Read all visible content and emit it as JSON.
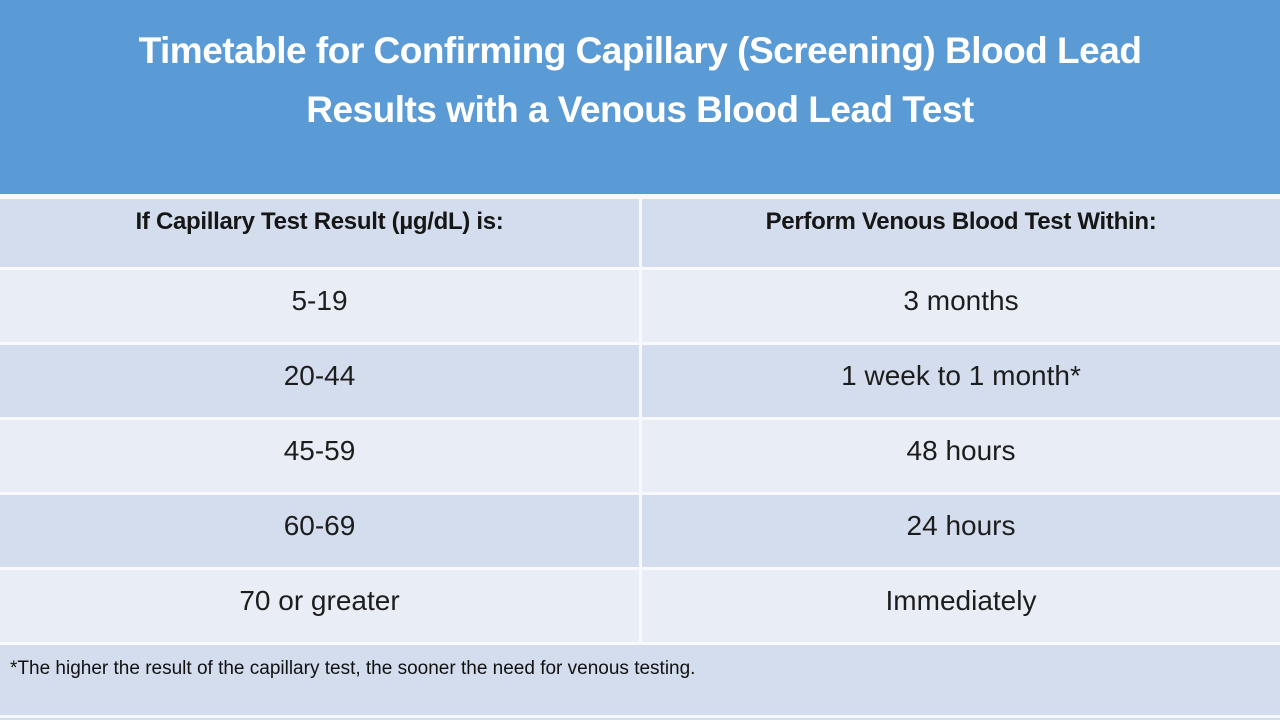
{
  "slide": {
    "title_lines": [
      "Timetable for Confirming Capillary (Screening) Blood Lead",
      "Results with a Venous Blood Lead Test"
    ],
    "colors": {
      "title_band_bg": "#5b9bd5",
      "title_text": "#ffffff",
      "band_dark": "#d3dded",
      "band_light": "#e9edf5",
      "body_text": "#1a1a1a"
    }
  },
  "table": {
    "columns": [
      "If Capillary Test Result (µg/dL) is:",
      "Perform Venous Blood Test Within:"
    ],
    "rows": [
      {
        "result": "5-19",
        "within": "3 months"
      },
      {
        "result": "20-44",
        "within": "1 week to 1 month*"
      },
      {
        "result": "45-59",
        "within": "48 hours"
      },
      {
        "result": "60-69",
        "within": "24 hours"
      },
      {
        "result": "70 or greater",
        "within": "Immediately"
      }
    ],
    "footnote": "*The higher the result of the capillary test, the sooner the need for venous testing."
  }
}
